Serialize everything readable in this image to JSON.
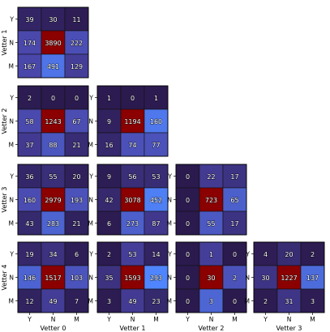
{
  "chart_data": {
    "type": "heatmap",
    "row_axis_labels": [
      "Vetter 1",
      "Vetter 2",
      "Vetter 3",
      "Vetter 4"
    ],
    "col_axis_labels": [
      "Vetter 0",
      "Vetter 1",
      "Vetter 2",
      "Vetter 3"
    ],
    "categories": [
      "Y",
      "N",
      "M"
    ],
    "colormap": {
      "low": "#2b1a4e",
      "mid": "#4a45a8",
      "high_blue": "#4f86ff",
      "peak": "#8b0000"
    },
    "matrices": [
      {
        "row": 0,
        "col": 0,
        "values": [
          [
            39,
            30,
            11
          ],
          [
            174,
            3890,
            222
          ],
          [
            167,
            491,
            129
          ]
        ]
      },
      {
        "row": 1,
        "col": 0,
        "values": [
          [
            2,
            0,
            0
          ],
          [
            58,
            1243,
            67
          ],
          [
            37,
            88,
            21
          ]
        ]
      },
      {
        "row": 1,
        "col": 1,
        "values": [
          [
            1,
            0,
            1
          ],
          [
            9,
            1194,
            160
          ],
          [
            16,
            74,
            77
          ]
        ]
      },
      {
        "row": 2,
        "col": 0,
        "values": [
          [
            36,
            55,
            20
          ],
          [
            160,
            2979,
            193
          ],
          [
            43,
            283,
            21
          ]
        ]
      },
      {
        "row": 2,
        "col": 1,
        "values": [
          [
            9,
            56,
            53
          ],
          [
            42,
            3078,
            452
          ],
          [
            6,
            273,
            87
          ]
        ]
      },
      {
        "row": 2,
        "col": 2,
        "values": [
          [
            0,
            22,
            17
          ],
          [
            0,
            723,
            65
          ],
          [
            0,
            55,
            17
          ]
        ]
      },
      {
        "row": 3,
        "col": 0,
        "values": [
          [
            19,
            34,
            6
          ],
          [
            146,
            1517,
            103
          ],
          [
            12,
            49,
            7
          ]
        ]
      },
      {
        "row": 3,
        "col": 1,
        "values": [
          [
            2,
            53,
            14
          ],
          [
            35,
            1593,
            293
          ],
          [
            3,
            49,
            23
          ]
        ]
      },
      {
        "row": 3,
        "col": 2,
        "values": [
          [
            0,
            1,
            0
          ],
          [
            0,
            30,
            2
          ],
          [
            0,
            3,
            0
          ]
        ]
      },
      {
        "row": 3,
        "col": 3,
        "values": [
          [
            4,
            20,
            2
          ],
          [
            30,
            1227,
            137
          ],
          [
            2,
            31,
            3
          ]
        ]
      }
    ]
  }
}
